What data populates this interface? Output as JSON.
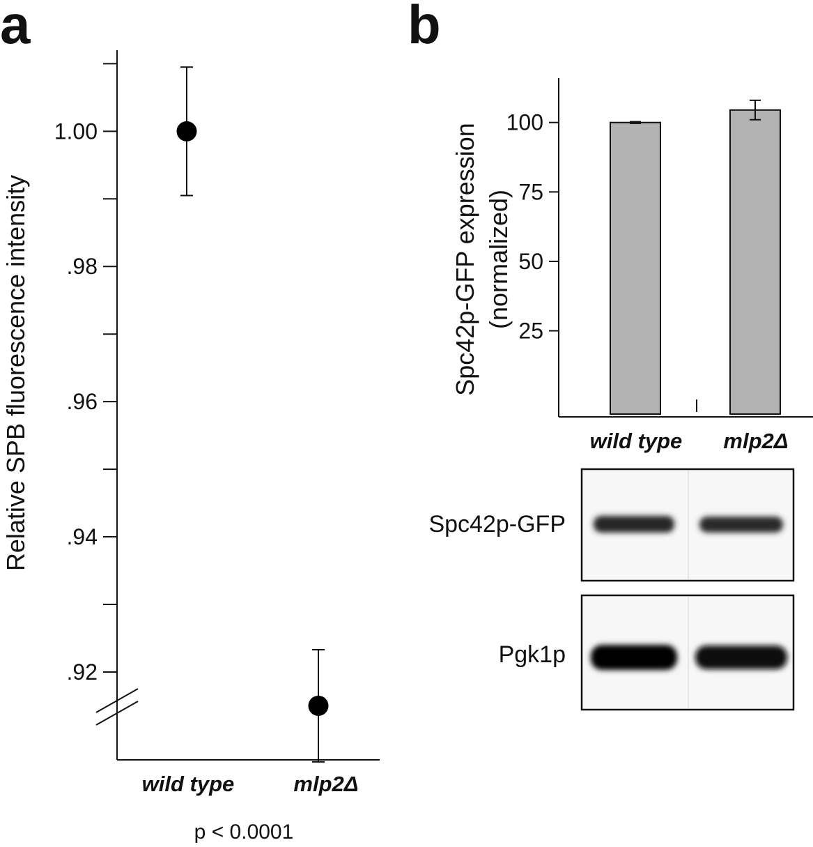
{
  "chart_data": [
    {
      "panel": "a",
      "type": "scatter",
      "ylabel": "Relative SPB fluorescence intensity",
      "categories": [
        "wild type",
        "mlp2Δ"
      ],
      "values": [
        1.0,
        0.915
      ],
      "errors": [
        0.0095,
        0.0083
      ],
      "ylim": [
        0.907,
        1.012
      ],
      "yticks": [
        0.92,
        0.94,
        0.96,
        0.98,
        1.0
      ],
      "ytick_labels": [
        ".92",
        ".94",
        ".96",
        ".98",
        "1.00"
      ],
      "yminor": [
        0.93,
        0.95,
        0.97,
        0.99,
        1.01
      ],
      "axis_break": true,
      "note": "p < 0.0001",
      "marker_color": "#000000"
    },
    {
      "panel": "b",
      "type": "bar",
      "ylabel": "Spc42p-GFP expression",
      "ylabel2": "(normalized)",
      "categories": [
        "wild type",
        "mlp2Δ"
      ],
      "values": [
        100,
        104.5
      ],
      "errors": [
        0.3,
        3.5
      ],
      "ylim": [
        -6,
        116
      ],
      "yticks": [
        25,
        50,
        75,
        100
      ],
      "ytick_labels": [
        "25",
        "50",
        "75",
        "100"
      ],
      "bar_color": "#b3b3b3"
    }
  ],
  "blot": {
    "rows": [
      {
        "label": "Spc42p-GFP",
        "intensity": "medium"
      },
      {
        "label": "Pgk1p",
        "intensity": "strong"
      }
    ],
    "lanes": [
      "wild type",
      "mlp2Δ"
    ]
  }
}
